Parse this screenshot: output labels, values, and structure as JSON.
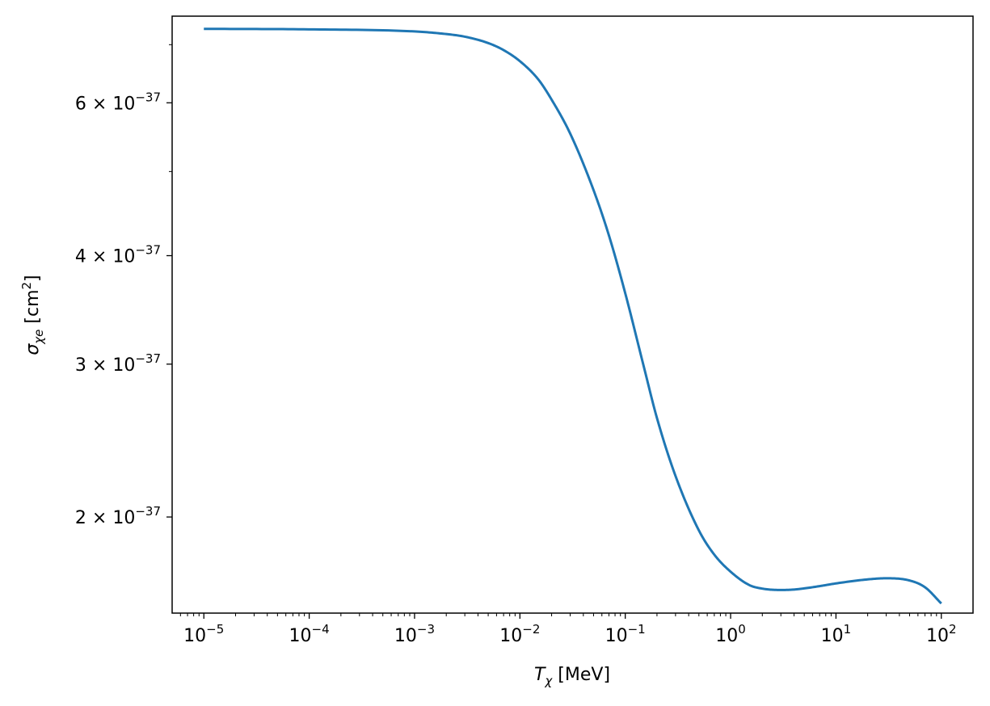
{
  "chart_data": {
    "type": "line",
    "xlabel": {
      "base": "T",
      "sub": "χ",
      "unit": " [MeV]"
    },
    "ylabel": {
      "base": "σ",
      "sub": "χe",
      "unit_prefix": " [cm",
      "unit_sup": "2",
      "unit_suffix": "]"
    },
    "x_scale": "log",
    "y_scale": "log",
    "xlim": [
      5e-06,
      200.0
    ],
    "ylim": [
      1.55e-37,
      7.55e-37
    ],
    "grid": false,
    "x_major_ticks": [
      {
        "value": 1e-05,
        "base": "10",
        "exp": "−5"
      },
      {
        "value": 0.0001,
        "base": "10",
        "exp": "−4"
      },
      {
        "value": 0.001,
        "base": "10",
        "exp": "−3"
      },
      {
        "value": 0.01,
        "base": "10",
        "exp": "−2"
      },
      {
        "value": 0.1,
        "base": "10",
        "exp": "−1"
      },
      {
        "value": 1,
        "base": "10",
        "exp": "0"
      },
      {
        "value": 10,
        "base": "10",
        "exp": "1"
      },
      {
        "value": 100,
        "base": "10",
        "exp": "2"
      }
    ],
    "y_labeled_ticks": [
      {
        "value": 2e-37,
        "mant": "2",
        "times": "×",
        "base": "10",
        "exp": "−37"
      },
      {
        "value": 3e-37,
        "mant": "3",
        "times": "×",
        "base": "10",
        "exp": "−37"
      },
      {
        "value": 4e-37,
        "mant": "4",
        "times": "×",
        "base": "10",
        "exp": "−37"
      },
      {
        "value": 6e-37,
        "mant": "6",
        "times": "×",
        "base": "10",
        "exp": "−37"
      }
    ],
    "y_minor_ticks": [
      5e-37,
      7e-37
    ],
    "series": [
      {
        "color": "#1f77b4",
        "x": [
          1e-05,
          0.0001,
          0.001,
          0.002,
          0.003,
          0.005,
          0.007,
          0.01,
          0.015,
          0.02,
          0.03,
          0.05,
          0.07,
          0.1,
          0.15,
          0.2,
          0.3,
          0.5,
          0.7,
          1,
          1.5,
          2,
          3,
          4,
          5,
          7,
          10,
          20,
          30,
          50,
          70,
          100
        ],
        "y": [
          7.3e-37,
          7.29e-37,
          7.25e-37,
          7.2e-37,
          7.15e-37,
          7.03e-37,
          6.9e-37,
          6.7e-37,
          6.38e-37,
          6.05e-37,
          5.53e-37,
          4.76e-37,
          4.22e-37,
          3.62e-37,
          2.98e-37,
          2.6e-37,
          2.23e-37,
          1.93e-37,
          1.81e-37,
          1.73e-37,
          1.67e-37,
          1.654e-37,
          1.648e-37,
          1.65e-37,
          1.655e-37,
          1.665e-37,
          1.677e-37,
          1.695e-37,
          1.7e-37,
          1.69e-37,
          1.66e-37,
          1.59e-37
        ]
      }
    ]
  }
}
